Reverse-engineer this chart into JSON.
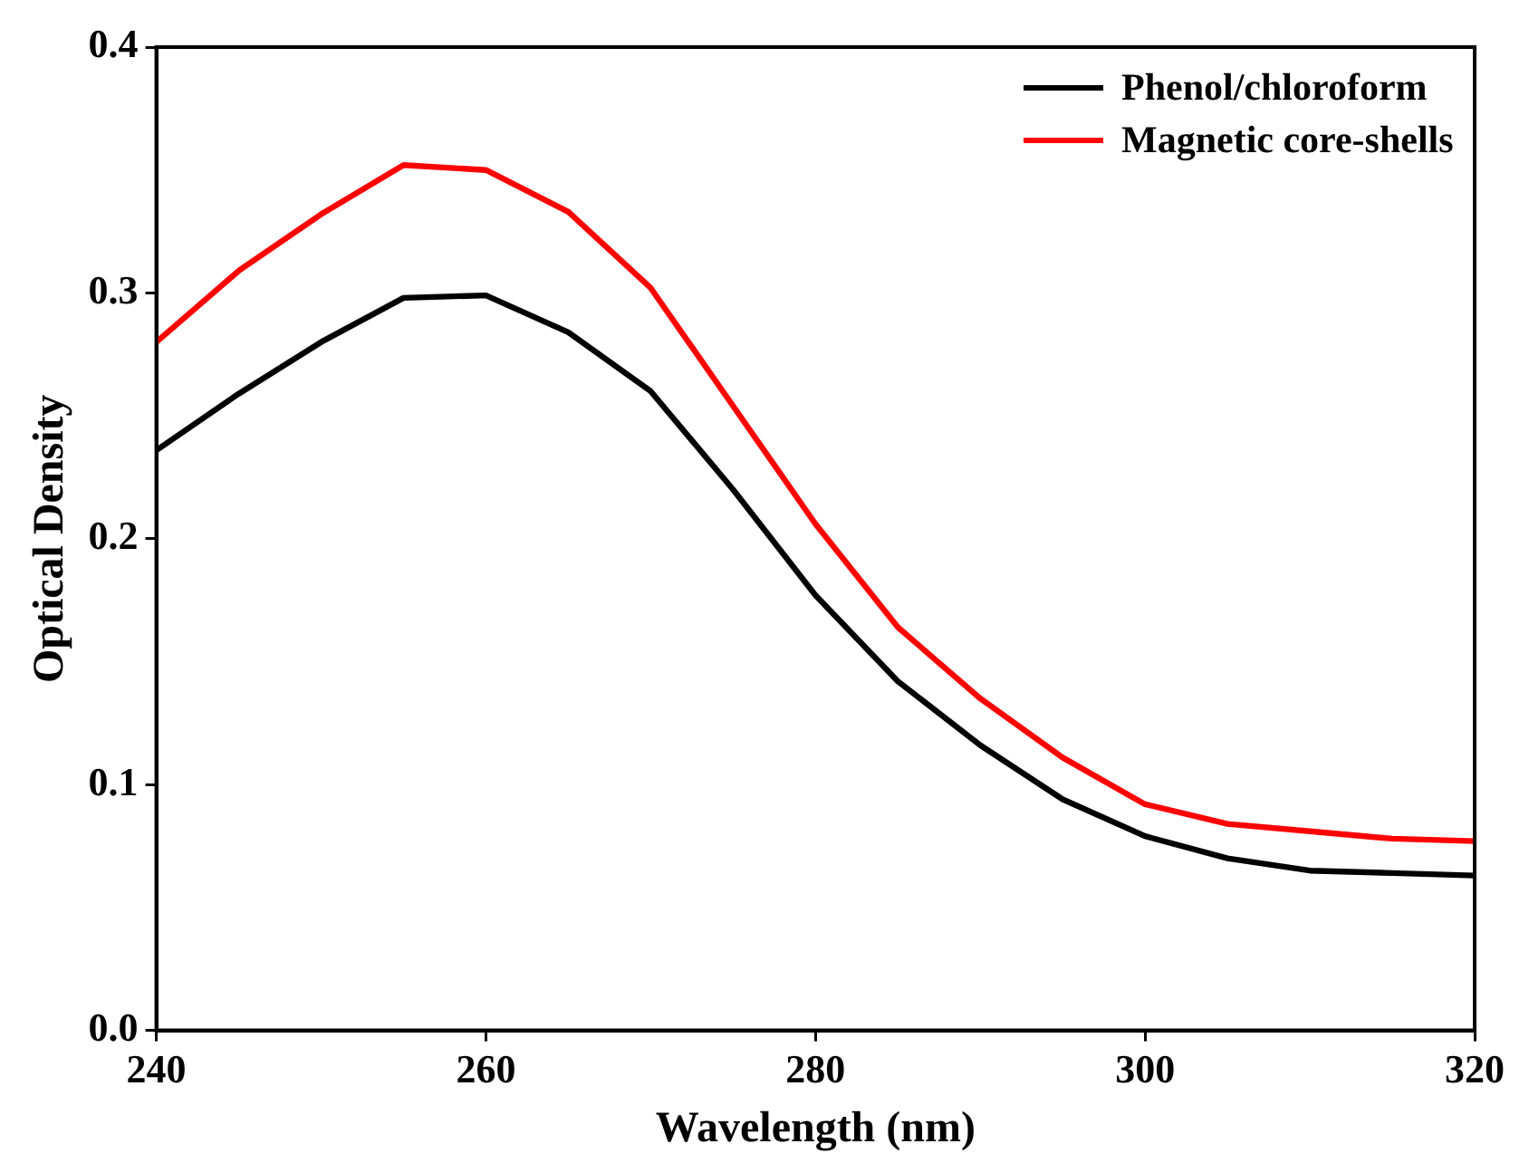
{
  "chart_data": {
    "type": "line",
    "xlabel": "Wavelength (nm)",
    "ylabel": "Optical Density",
    "x": [
      240,
      245,
      250,
      255,
      260,
      265,
      270,
      275,
      280,
      285,
      290,
      295,
      300,
      305,
      310,
      315,
      320
    ],
    "series": [
      {
        "name": "Phenol/chloroform",
        "color": "#000000",
        "values": [
          0.236,
          0.259,
          0.28,
          0.298,
          0.299,
          0.284,
          0.26,
          0.22,
          0.177,
          0.142,
          0.116,
          0.094,
          0.079,
          0.07,
          0.065,
          0.064,
          0.063
        ]
      },
      {
        "name": "Magnetic core-shells",
        "color": "#ff0000",
        "values": [
          0.28,
          0.309,
          0.332,
          0.352,
          0.35,
          0.333,
          0.302,
          0.254,
          0.206,
          0.164,
          0.135,
          0.111,
          0.092,
          0.084,
          0.081,
          0.078,
          0.077
        ]
      }
    ],
    "xlim": [
      240,
      320
    ],
    "xticks": [
      240,
      260,
      280,
      300,
      320
    ],
    "ylim": [
      0,
      0.4
    ],
    "yticks": [
      {
        "value": 0,
        "label": "0.0"
      },
      {
        "value": 0.1,
        "label": "0.1"
      },
      {
        "value": 0.2,
        "label": "0.2"
      },
      {
        "value": 0.3,
        "label": "0.3"
      },
      {
        "value": 0.4,
        "label": "0.4"
      }
    ],
    "grid": false,
    "legend": "top right",
    "marker": "none",
    "line_style": "solid"
  }
}
